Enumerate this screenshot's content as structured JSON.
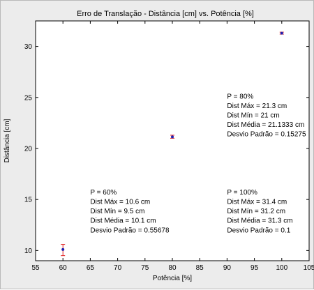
{
  "chart_data": {
    "type": "scatter",
    "title": "Erro de Translação - Distância [cm] vs. Potência [%]",
    "xlabel": "Potência [%]",
    "ylabel": "Distância [cm]",
    "xlim": [
      55,
      105
    ],
    "ylim": [
      9,
      32.5
    ],
    "xticks": [
      55,
      60,
      65,
      70,
      75,
      80,
      85,
      90,
      95,
      100,
      105
    ],
    "yticks": [
      10,
      15,
      20,
      25,
      30
    ],
    "grid": false,
    "legend": "none",
    "marker_color": "#1f1fb0",
    "errorbar_color": "#e02020",
    "series": [
      {
        "x": [
          60,
          80,
          100
        ],
        "y": [
          10.1,
          21.1333,
          31.3
        ],
        "ymax": [
          10.6,
          21.3,
          31.4
        ],
        "ymin": [
          9.5,
          21,
          31.2
        ]
      }
    ],
    "annotations": [
      {
        "x": 65,
        "y": 15.5,
        "lines": [
          "P = 60%",
          "Dist Máx = 10.6 cm",
          "Dist Mín = 9.5 cm",
          "Dist Média = 10.1 cm",
          "Desvio Padrão = 0.55678"
        ]
      },
      {
        "x": 90,
        "y": 24.9,
        "lines": [
          "P = 80%",
          "Dist Máx = 21.3 cm",
          "Dist Mín = 21 cm",
          "Dist Média = 21.1333 cm",
          "Desvio Padrão = 0.15275"
        ]
      },
      {
        "x": 90,
        "y": 15.5,
        "lines": [
          "P = 100%",
          "Dist Máx = 31.4 cm",
          "Dist Mín = 31.2 cm",
          "Dist Média = 31.3 cm",
          "Desvio Padrão = 0.1"
        ]
      }
    ]
  }
}
